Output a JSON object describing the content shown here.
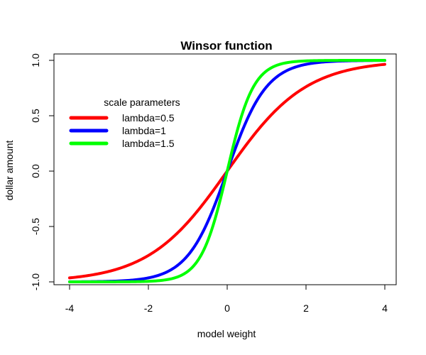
{
  "chart_data": {
    "type": "line",
    "title": "Winsor function",
    "xlabel": "model weight",
    "ylabel": "dollar amount",
    "xlim": [
      -4,
      4
    ],
    "ylim": [
      -1,
      1
    ],
    "xticks": [
      "-4",
      "-2",
      "0",
      "2",
      "4"
    ],
    "yticks": [
      "-1.0",
      "-0.5",
      "0.0",
      "0.5",
      "1.0"
    ],
    "grid": false,
    "legend": {
      "title": "scale parameters",
      "position": "top-left"
    },
    "series": [
      {
        "name": "lambda=0.5",
        "lambda": 0.5,
        "color": "#ff0000"
      },
      {
        "name": "lambda=1",
        "lambda": 1,
        "color": "#0000ff"
      },
      {
        "name": "lambda=1.5",
        "lambda": 1.5,
        "color": "#00ff00"
      }
    ],
    "function": "tanh(lambda * x)"
  }
}
